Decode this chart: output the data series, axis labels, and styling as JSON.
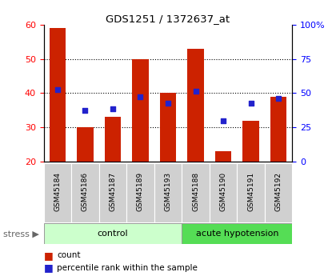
{
  "title": "GDS1251 / 1372637_at",
  "samples": [
    "GSM45184",
    "GSM45186",
    "GSM45187",
    "GSM45189",
    "GSM45193",
    "GSM45188",
    "GSM45190",
    "GSM45191",
    "GSM45192"
  ],
  "red_values": [
    59,
    30,
    33,
    50,
    40,
    53,
    23,
    32,
    39
  ],
  "blue_values": [
    41,
    35,
    35.5,
    39,
    37,
    40.5,
    32,
    37,
    38.5
  ],
  "bar_bottom": 20,
  "ylim_left": [
    20,
    60
  ],
  "ylim_right": [
    0,
    100
  ],
  "yticks_left": [
    20,
    30,
    40,
    50,
    60
  ],
  "yticks_right": [
    0,
    25,
    50,
    75,
    100
  ],
  "ytick_labels_right": [
    "0",
    "25",
    "50",
    "75",
    "100%"
  ],
  "bar_color": "#cc2200",
  "dot_color": "#2222cc",
  "control_label": "control",
  "acute_label": "acute hypotension",
  "stress_label": "stress",
  "legend_count": "count",
  "legend_percentile": "percentile rank within the sample",
  "control_bg": "#ccffcc",
  "acute_bg": "#55dd55",
  "xticklabel_bg": "#d0d0d0",
  "bar_width": 0.6,
  "n_control": 5,
  "n_acute": 4
}
